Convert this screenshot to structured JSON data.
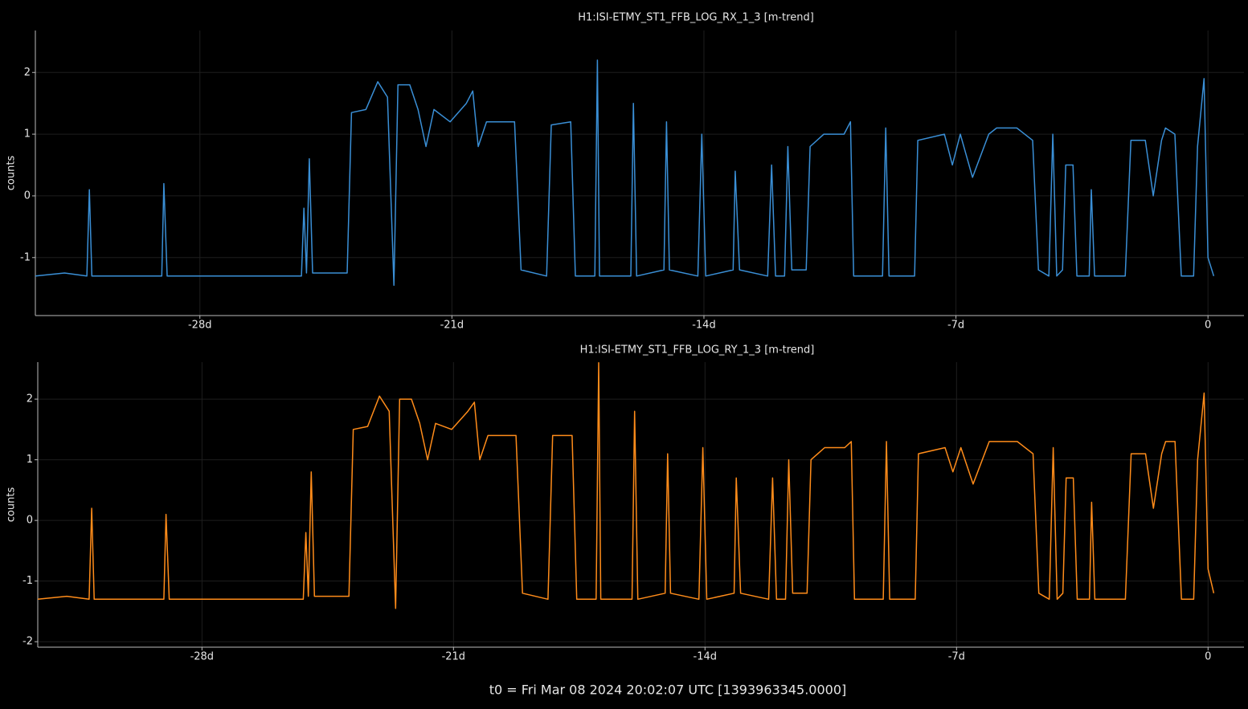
{
  "footer": "t0 = Fri Mar 08 2024 20:02:07 UTC [1393963345.0000]",
  "chart_data": [
    {
      "type": "line",
      "title": "H1:ISI-ETMY_ST1_FFB_LOG_RX_1_3 [m-trend]",
      "ylabel": "counts",
      "color": "#3a8fd6",
      "grid": true,
      "xlim": [
        -32.57,
        1.0
      ],
      "ylim": [
        -1.94,
        2.68
      ],
      "xticks": [
        {
          "value": -28,
          "label": "-28d"
        },
        {
          "value": -21,
          "label": "-21d"
        },
        {
          "value": -14,
          "label": "-14d"
        },
        {
          "value": -7,
          "label": "-7d"
        },
        0
      ],
      "yticks": [
        -1,
        0,
        1,
        2
      ],
      "x": [
        -32.57,
        -31.76,
        -31.14,
        -31.07,
        -31.0,
        -29.97,
        -29.06,
        -29.0,
        -28.91,
        -26.85,
        -25.18,
        -25.11,
        -25.04,
        -24.96,
        -24.87,
        -23.91,
        -23.79,
        -23.39,
        -23.06,
        -22.79,
        -22.61,
        -22.5,
        -22.17,
        -21.94,
        -21.72,
        -21.5,
        -21.05,
        -20.6,
        -20.42,
        -20.27,
        -20.04,
        -19.26,
        -19.08,
        -18.37,
        -18.24,
        -17.7,
        -17.57,
        -17.03,
        -16.96,
        -16.9,
        -16.03,
        -15.96,
        -15.87,
        -15.11,
        -15.04,
        -14.96,
        -14.17,
        -14.06,
        -13.95,
        -13.19,
        -13.13,
        -13.01,
        -12.23,
        -12.12,
        -12.01,
        -11.76,
        -11.67,
        -11.56,
        -11.16,
        -11.05,
        -10.67,
        -10.11,
        -9.93,
        -9.84,
        -9.04,
        -8.95,
        -8.86,
        -8.15,
        -8.06,
        -7.32,
        -7.1,
        -6.88,
        -6.54,
        -6.09,
        -5.87,
        -5.31,
        -4.87,
        -4.71,
        -4.42,
        -4.31,
        -4.2,
        -4.04,
        -3.95,
        -3.75,
        -3.64,
        -3.3,
        -3.24,
        -3.15,
        -2.3,
        -2.14,
        -1.74,
        -1.52,
        -1.29,
        -1.18,
        -0.92,
        -0.74,
        -0.4,
        -0.29,
        -0.11,
        0,
        0.16
      ],
      "values": [
        -1.3,
        -1.25,
        -1.3,
        0.1,
        -1.3,
        -1.3,
        -1.3,
        0.2,
        -1.3,
        -1.3,
        -1.3,
        -0.2,
        -1.25,
        0.6,
        -1.25,
        -1.25,
        1.35,
        1.4,
        1.85,
        1.6,
        -1.45,
        1.8,
        1.8,
        1.4,
        0.8,
        1.4,
        1.2,
        1.5,
        1.7,
        0.8,
        1.2,
        1.2,
        -1.2,
        -1.3,
        1.15,
        1.2,
        -1.3,
        -1.3,
        2.2,
        -1.3,
        -1.3,
        1.5,
        -1.3,
        -1.2,
        1.2,
        -1.2,
        -1.3,
        1.0,
        -1.3,
        -1.2,
        0.4,
        -1.2,
        -1.3,
        0.5,
        -1.3,
        -1.3,
        0.8,
        -1.2,
        -1.2,
        0.8,
        1.0,
        1.0,
        1.2,
        -1.3,
        -1.3,
        1.1,
        -1.3,
        -1.3,
        0.9,
        1.0,
        0.5,
        1.0,
        0.3,
        1.0,
        1.1,
        1.1,
        0.9,
        -1.2,
        -1.3,
        1.0,
        -1.3,
        -1.2,
        0.5,
        0.5,
        -1.3,
        -1.3,
        0.1,
        -1.3,
        -1.3,
        0.9,
        0.9,
        0.0,
        0.9,
        1.1,
        1.0,
        -1.3,
        -1.3,
        0.8,
        1.9,
        -1.0,
        -1.3
      ]
    },
    {
      "type": "line",
      "title": "H1:ISI-ETMY_ST1_FFB_LOG_RY_1_3 [m-trend]",
      "ylabel": "counts",
      "color": "#ff8c1a",
      "grid": true,
      "xlim": [
        -32.57,
        1.0
      ],
      "ylim": [
        -2.09,
        2.61
      ],
      "xticks": [
        {
          "value": -28,
          "label": "-28d"
        },
        {
          "value": -21,
          "label": "-21d"
        },
        {
          "value": -14,
          "label": "-14d"
        },
        {
          "value": -7,
          "label": "-7d"
        },
        0
      ],
      "yticks": [
        -2,
        -1,
        0,
        1,
        2
      ],
      "x": [
        -32.57,
        -31.76,
        -31.14,
        -31.07,
        -31.0,
        -29.97,
        -29.06,
        -29.0,
        -28.91,
        -26.85,
        -25.18,
        -25.11,
        -25.04,
        -24.96,
        -24.87,
        -23.91,
        -23.79,
        -23.39,
        -23.06,
        -22.79,
        -22.61,
        -22.5,
        -22.17,
        -21.94,
        -21.72,
        -21.5,
        -21.05,
        -20.6,
        -20.42,
        -20.27,
        -20.04,
        -19.26,
        -19.08,
        -18.37,
        -18.24,
        -17.7,
        -17.57,
        -17.03,
        -16.96,
        -16.9,
        -16.03,
        -15.96,
        -15.87,
        -15.11,
        -15.04,
        -14.96,
        -14.17,
        -14.06,
        -13.95,
        -13.19,
        -13.13,
        -13.01,
        -12.23,
        -12.12,
        -12.01,
        -11.76,
        -11.67,
        -11.56,
        -11.16,
        -11.05,
        -10.67,
        -10.11,
        -9.93,
        -9.84,
        -9.04,
        -8.95,
        -8.86,
        -8.15,
        -8.06,
        -7.32,
        -7.1,
        -6.88,
        -6.54,
        -6.09,
        -5.87,
        -5.31,
        -4.87,
        -4.71,
        -4.42,
        -4.31,
        -4.2,
        -4.04,
        -3.95,
        -3.75,
        -3.64,
        -3.3,
        -3.24,
        -3.15,
        -2.3,
        -2.14,
        -1.74,
        -1.52,
        -1.29,
        -1.18,
        -0.92,
        -0.74,
        -0.4,
        -0.29,
        -0.11,
        0,
        0.16
      ],
      "values": [
        -1.3,
        -1.25,
        -1.3,
        0.2,
        -1.3,
        -1.3,
        -1.3,
        0.1,
        -1.3,
        -1.3,
        -1.3,
        -0.2,
        -1.25,
        0.8,
        -1.25,
        -1.25,
        1.5,
        1.55,
        2.05,
        1.8,
        -1.45,
        2.0,
        2.0,
        1.6,
        1.0,
        1.6,
        1.5,
        1.8,
        1.95,
        1.0,
        1.4,
        1.4,
        -1.2,
        -1.3,
        1.4,
        1.4,
        -1.3,
        -1.3,
        2.6,
        -1.3,
        -1.3,
        1.8,
        -1.3,
        -1.2,
        1.1,
        -1.2,
        -1.3,
        1.2,
        -1.3,
        -1.2,
        0.7,
        -1.2,
        -1.3,
        0.7,
        -1.3,
        -1.3,
        1.0,
        -1.2,
        -1.2,
        1.0,
        1.2,
        1.2,
        1.3,
        -1.3,
        -1.3,
        1.3,
        -1.3,
        -1.3,
        1.1,
        1.2,
        0.8,
        1.2,
        0.6,
        1.3,
        1.3,
        1.3,
        1.1,
        -1.2,
        -1.3,
        1.2,
        -1.3,
        -1.2,
        0.7,
        0.7,
        -1.3,
        -1.3,
        0.3,
        -1.3,
        -1.3,
        1.1,
        1.1,
        0.2,
        1.1,
        1.3,
        1.3,
        -1.3,
        -1.3,
        1.0,
        2.1,
        -0.8,
        -1.2
      ]
    }
  ]
}
